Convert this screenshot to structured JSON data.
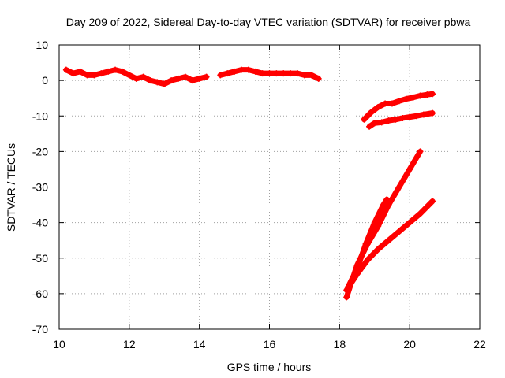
{
  "chart_data": {
    "type": "scatter",
    "title": "Day 209 of 2022, Sidereal Day-to-day VTEC variation (SDTVAR) for receiver pbwa",
    "xlabel": "GPS time / hours",
    "ylabel": "SDTVAR / TECUs",
    "xlim": [
      10,
      22
    ],
    "ylim": [
      -70,
      10
    ],
    "xticks": [
      10,
      12,
      14,
      16,
      18,
      20,
      22
    ],
    "yticks": [
      10,
      0,
      -10,
      -20,
      -30,
      -40,
      -50,
      -60,
      -70
    ],
    "grid": true,
    "marker": "plus",
    "color": "#ff0000",
    "series": [
      {
        "x": [
          10.2,
          10.4,
          10.6,
          10.8,
          11.0,
          11.2,
          11.4,
          11.6,
          11.8,
          12.0,
          12.2,
          12.4,
          12.6,
          12.8,
          13.0,
          13.2,
          13.4,
          13.6,
          13.8,
          14.0,
          14.2
        ],
        "y": [
          3,
          2,
          2.5,
          1.5,
          1.5,
          2,
          2.5,
          3,
          2.5,
          1.5,
          0.5,
          1,
          0,
          -0.5,
          -1,
          0,
          0.5,
          1,
          0,
          0.5,
          1
        ]
      },
      {
        "x": [
          14.6,
          14.8,
          15.0,
          15.2,
          15.4,
          15.6,
          15.8,
          16.0,
          16.2,
          16.4,
          16.6,
          16.8,
          17.0,
          17.2,
          17.4
        ],
        "y": [
          1.5,
          2,
          2.5,
          3,
          3,
          2.5,
          2,
          2,
          2,
          2,
          2,
          2,
          1.5,
          1.5,
          0.5
        ]
      },
      {
        "x": [
          18.7,
          18.9,
          19.1,
          19.3,
          19.5,
          19.7,
          19.9,
          20.1,
          20.3,
          20.5,
          20.65
        ],
        "y": [
          -11,
          -9,
          -7.5,
          -6.5,
          -6.5,
          -5.8,
          -5.2,
          -4.8,
          -4.3,
          -4,
          -3.8
        ]
      },
      {
        "x": [
          18.85,
          19.0,
          19.2,
          19.4,
          19.6,
          19.8,
          20.0,
          20.2,
          20.4,
          20.65
        ],
        "y": [
          -13,
          -12,
          -11.8,
          -11.3,
          -11,
          -10.6,
          -10.3,
          -10,
          -9.6,
          -9.2
        ]
      },
      {
        "x": [
          18.2,
          18.5,
          18.8,
          19.1,
          19.4,
          19.7,
          20.0,
          20.3
        ],
        "y": [
          -61,
          -52,
          -46,
          -41,
          -35,
          -30,
          -25,
          -20
        ]
      },
      {
        "x": [
          18.25,
          18.5,
          18.75,
          19.0,
          19.25,
          19.35
        ],
        "y": [
          -58,
          -53,
          -46,
          -40,
          -35,
          -33.5
        ]
      },
      {
        "x": [
          18.2,
          18.5,
          18.8,
          19.1,
          19.4,
          19.7,
          20.0,
          20.3,
          20.65
        ],
        "y": [
          -59,
          -54.5,
          -50.5,
          -47.5,
          -45,
          -42.5,
          -40,
          -37.5,
          -34
        ]
      }
    ]
  }
}
